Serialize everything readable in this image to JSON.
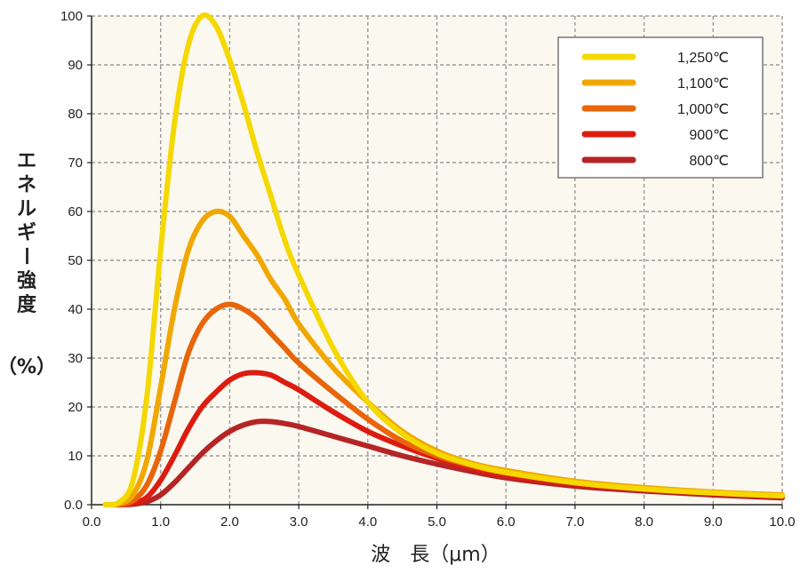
{
  "chart_data": {
    "type": "line",
    "title": "",
    "xlabel": "波　長（μm）",
    "ylabel": "エネルギー強度",
    "ylabel_unit": "（%）",
    "xlim": [
      0,
      10
    ],
    "ylim": [
      0,
      100
    ],
    "x_ticks": [
      "0.0",
      "1.0",
      "2.0",
      "3.0",
      "4.0",
      "5.0",
      "6.0",
      "7.0",
      "8.0",
      "9.0",
      "10.0"
    ],
    "y_ticks": [
      "0.0",
      "10",
      "20",
      "30",
      "40",
      "50",
      "60",
      "70",
      "80",
      "90",
      "100"
    ],
    "grid": true,
    "legend_position": "top-right",
    "x": [
      0.2,
      0.4,
      0.6,
      0.8,
      1.0,
      1.2,
      1.4,
      1.6,
      1.8,
      2.0,
      2.2,
      2.4,
      2.6,
      2.8,
      3.0,
      3.5,
      4.0,
      4.5,
      5.0,
      5.5,
      6.0,
      7.0,
      8.0,
      9.0,
      10.0
    ],
    "series": [
      {
        "name": "1,250℃",
        "color": "#f5d800",
        "values": [
          0,
          0.5,
          5,
          22,
          52,
          78,
          94,
          100,
          98,
          91,
          82,
          72,
          63,
          54,
          47,
          32,
          21,
          14.5,
          10.5,
          8.2,
          6.6,
          4.5,
          3.2,
          2.4,
          1.8
        ]
      },
      {
        "name": "1,100℃",
        "color": "#f0a800",
        "values": [
          0,
          0.2,
          2,
          9,
          24,
          40,
          52,
          58,
          60,
          59,
          55,
          51,
          46,
          42,
          37,
          28,
          21,
          15,
          11,
          8.5,
          7,
          4.8,
          3.5,
          2.6,
          2.0
        ]
      },
      {
        "name": "1,000℃",
        "color": "#e8650a",
        "values": [
          0,
          0.1,
          0.8,
          4,
          11,
          21,
          31,
          37,
          40,
          41,
          40,
          38,
          35,
          32,
          29,
          23,
          17.5,
          13,
          10,
          8,
          6.5,
          4.5,
          3.3,
          2.5,
          1.9
        ]
      },
      {
        "name": "900℃",
        "color": "#dd1c10",
        "values": [
          0,
          0,
          0.3,
          1.5,
          5,
          10,
          15.5,
          20,
          23,
          25.5,
          26.8,
          27,
          26.5,
          25,
          23.5,
          19,
          15,
          12,
          9.5,
          7.5,
          6,
          4.2,
          3.1,
          2.3,
          1.7
        ]
      },
      {
        "name": "800℃",
        "color": "#b52525",
        "values": [
          0,
          0,
          0.1,
          0.6,
          2,
          4.5,
          7.5,
          10.5,
          13,
          15,
          16.3,
          17,
          17,
          16.6,
          16,
          14,
          12,
          10,
          8.3,
          6.8,
          5.5,
          3.8,
          2.8,
          2.0,
          1.4
        ]
      }
    ]
  }
}
